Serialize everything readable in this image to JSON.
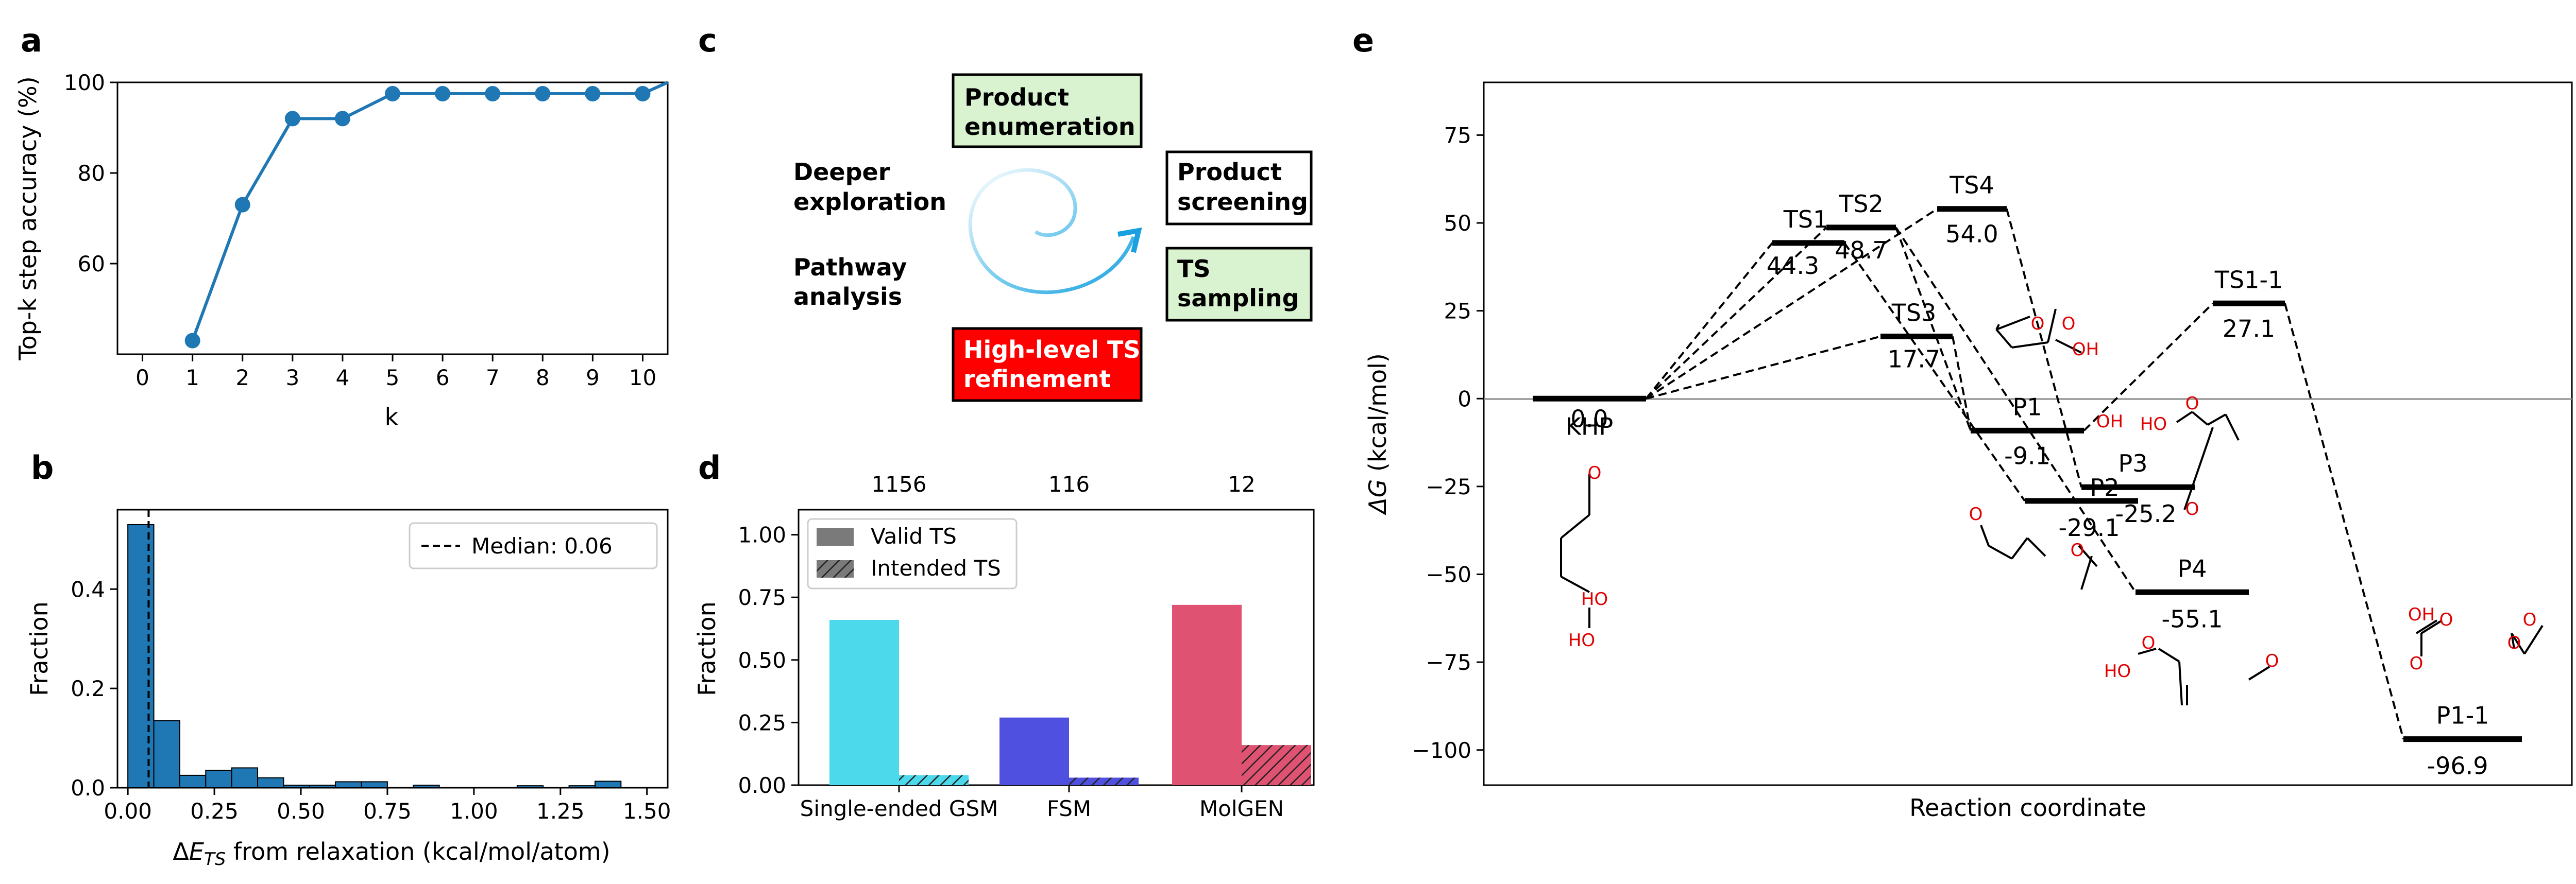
{
  "panels": {
    "a": "a",
    "b": "b",
    "c": "c",
    "d": "d",
    "e": "e"
  },
  "chart_data": [
    {
      "id": "a",
      "type": "line",
      "xlabel": "k",
      "ylabel": "Top-k step accuracy (%)",
      "xlim": [
        -0.5,
        10.5
      ],
      "ylim": [
        40,
        100
      ],
      "xticks": [
        0,
        1,
        2,
        3,
        4,
        5,
        6,
        7,
        8,
        9,
        10
      ],
      "yticks": [
        60,
        80,
        100
      ],
      "x": [
        1,
        2,
        3,
        4,
        5,
        6,
        7,
        8,
        9,
        10
      ],
      "y": [
        43,
        73,
        92,
        92,
        97.5,
        97.5,
        97.5,
        97.5,
        97.5,
        97.5
      ],
      "tail": [
        10.5,
        100
      ]
    },
    {
      "id": "b",
      "type": "bar",
      "xlabel": "ΔE_TS from relaxation (kcal/mol/atom)",
      "ylabel": "Fraction",
      "xlim": [
        -0.03,
        1.56
      ],
      "ylim": [
        0,
        0.56
      ],
      "xticks": [
        "0.00",
        "0.25",
        "0.50",
        "0.75",
        "1.00",
        "1.25",
        "1.50"
      ],
      "yticks": [
        "0.0",
        "0.2",
        "0.4"
      ],
      "bin_edges": [
        0,
        0.075,
        0.15,
        0.225,
        0.3,
        0.375,
        0.45,
        0.525,
        0.6,
        0.675,
        0.75,
        0.825,
        0.9,
        0.975,
        1.05,
        1.125,
        1.2,
        1.275,
        1.35,
        1.425,
        1.5
      ],
      "values": [
        0.53,
        0.135,
        0.025,
        0.035,
        0.04,
        0.02,
        0.005,
        0.005,
        0.012,
        0.012,
        0,
        0.005,
        0,
        0,
        0,
        0.004,
        0,
        0.004,
        0.013,
        0
      ],
      "median": 0.06,
      "legend": "Median: 0.06"
    },
    {
      "id": "d",
      "type": "bar",
      "ylabel": "Fraction",
      "ylim": [
        0,
        1.1
      ],
      "yticks": [
        "0.00",
        "0.25",
        "0.50",
        "0.75",
        "1.00"
      ],
      "categories": [
        "Single-ended GSM",
        "FSM",
        "MolGEN"
      ],
      "counts": [
        "1156",
        "116",
        "12"
      ],
      "series": [
        {
          "name": "Valid TS",
          "values": [
            0.66,
            0.27,
            0.72
          ]
        },
        {
          "name": "Intended TS",
          "values": [
            0.04,
            0.03,
            0.16
          ]
        }
      ],
      "colors": [
        "#4dd9ec",
        "#5050e0",
        "#e05272"
      ]
    },
    {
      "id": "e",
      "type": "energy-profile",
      "xlabel": "Reaction coordinate",
      "ylabel": "ΔG (kcal/mol)",
      "ylim": [
        -110,
        90
      ],
      "yticks": [
        "75",
        "50",
        "25",
        "0",
        "−25",
        "−50",
        "−75",
        "−100"
      ],
      "levels": [
        {
          "name": "KHP",
          "energy": 0.0,
          "label": "0.0"
        },
        {
          "name": "TS1",
          "energy": 44.3,
          "label": "44.3"
        },
        {
          "name": "TS2",
          "energy": 48.7,
          "label": "48.7"
        },
        {
          "name": "TS4",
          "energy": 54.0,
          "label": "54.0"
        },
        {
          "name": "TS3",
          "energy": 17.7,
          "label": "17.7"
        },
        {
          "name": "P1",
          "energy": -9.1,
          "label": "-9.1"
        },
        {
          "name": "P2",
          "energy": -29.1,
          "label": "-29.1"
        },
        {
          "name": "P3",
          "energy": -25.2,
          "label": "-25.2"
        },
        {
          "name": "P4",
          "energy": -55.1,
          "label": "-55.1"
        },
        {
          "name": "TS1-1",
          "energy": 27.1,
          "label": "27.1"
        },
        {
          "name": "P1-1",
          "energy": -96.9,
          "label": "-96.9"
        }
      ],
      "mol_labels": [
        "HO",
        "OH",
        "O",
        "HO",
        "O",
        "O",
        "O",
        "O",
        "OH",
        "HO",
        "O",
        "O",
        "HO",
        "O",
        "O",
        "O",
        "O",
        "OH",
        "O",
        "O"
      ]
    }
  ],
  "workflow": {
    "product_enumeration": [
      "Product",
      "enumeration"
    ],
    "product_screening": [
      "Product",
      "screening"
    ],
    "ts_sampling": [
      "TS",
      "sampling"
    ],
    "refinement": [
      "High-level TS",
      "refinement"
    ],
    "deeper": [
      "Deeper",
      "exploration"
    ],
    "pathway": [
      "Pathway",
      "analysis"
    ]
  }
}
